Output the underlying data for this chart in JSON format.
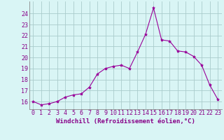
{
  "x": [
    0,
    1,
    2,
    3,
    4,
    5,
    6,
    7,
    8,
    9,
    10,
    11,
    12,
    13,
    14,
    15,
    16,
    17,
    18,
    19,
    20,
    21,
    22,
    23
  ],
  "y": [
    16.0,
    15.7,
    15.8,
    16.0,
    16.4,
    16.6,
    16.7,
    17.3,
    18.5,
    19.0,
    19.2,
    19.3,
    19.0,
    20.5,
    22.1,
    24.5,
    21.6,
    21.5,
    20.6,
    20.5,
    20.1,
    19.3,
    17.5,
    16.2
  ],
  "line_color": "#990099",
  "marker": "*",
  "marker_size": 3,
  "bg_color": "#d9f5f5",
  "grid_color": "#aacccc",
  "xlabel": "Windchill (Refroidissement éolien,°C)",
  "xlim": [
    -0.5,
    23.5
  ],
  "ylim": [
    15.3,
    25.1
  ],
  "yticks": [
    16,
    17,
    18,
    19,
    20,
    21,
    22,
    23,
    24
  ],
  "xticks": [
    0,
    1,
    2,
    3,
    4,
    5,
    6,
    7,
    8,
    9,
    10,
    11,
    12,
    13,
    14,
    15,
    16,
    17,
    18,
    19,
    20,
    21,
    22,
    23
  ],
  "tick_label_color": "#880088",
  "xlabel_color": "#880088",
  "axis_label_fontsize": 6.5,
  "tick_fontsize": 6.0
}
